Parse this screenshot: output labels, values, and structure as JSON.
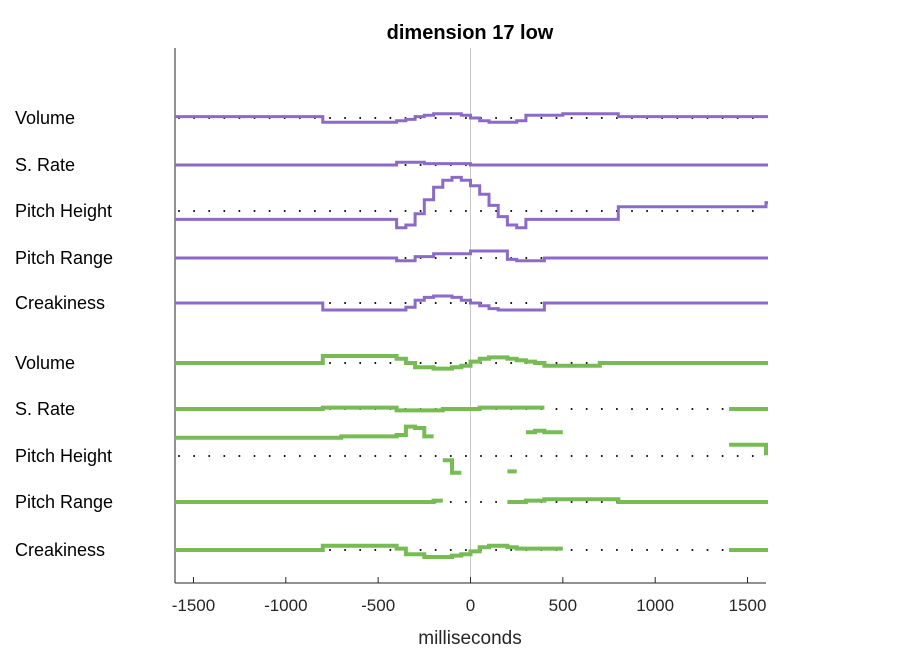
{
  "chart_data": {
    "type": "line",
    "title": "dimension 17 low",
    "xlabel": "milliseconds",
    "ylabel": "",
    "xlim": [
      -1600,
      1600
    ],
    "xticks": [
      -1500,
      -1000,
      -500,
      0,
      500,
      1000,
      1500
    ],
    "xtick_labels": [
      "-1500",
      "-1000",
      "-500",
      "0",
      "500",
      "1000",
      "1500"
    ],
    "zero_line": true,
    "grid": false,
    "legend": "none",
    "x": [
      -1600,
      -1500,
      -1400,
      -1300,
      -1200,
      -1100,
      -1000,
      -900,
      -800,
      -700,
      -600,
      -500,
      -400,
      -350,
      -300,
      -250,
      -200,
      -150,
      -100,
      -50,
      0,
      50,
      100,
      150,
      200,
      250,
      300,
      350,
      400,
      500,
      600,
      700,
      800,
      900,
      1000,
      1100,
      1200,
      1300,
      1400,
      1500,
      1600
    ],
    "colors": {
      "speaker_1": "#8c6bc8",
      "speaker_2": "#77bb55",
      "zero_line": "#c8c8c8",
      "baseline_dots": "#000000"
    },
    "series": [
      {
        "group": "speaker_1",
        "label": "Volume",
        "values": [
          0.1,
          0.1,
          0.1,
          0.1,
          0.1,
          0.1,
          0.1,
          0.1,
          -0.3,
          -0.3,
          -0.3,
          -0.3,
          -0.2,
          -0.1,
          0.1,
          0.2,
          0.3,
          0.3,
          0.3,
          0.2,
          0.0,
          -0.2,
          -0.3,
          -0.3,
          -0.3,
          -0.2,
          0.2,
          0.2,
          0.2,
          0.3,
          0.3,
          0.3,
          0.1,
          0.1,
          0.1,
          0.1,
          0.1,
          0.1,
          0.1,
          0.1,
          0.1
        ]
      },
      {
        "group": "speaker_1",
        "label": "S. Rate",
        "values": [
          0,
          0,
          0,
          0,
          0,
          0,
          0,
          0,
          0,
          0,
          0,
          0,
          0.2,
          0.2,
          0.2,
          0.1,
          0.1,
          0.1,
          0.1,
          0.1,
          0,
          0,
          0,
          0,
          0,
          0,
          0,
          0,
          0,
          0,
          0,
          0,
          0,
          0,
          0,
          0,
          0,
          0,
          0,
          0,
          0
        ]
      },
      {
        "group": "speaker_1",
        "label": "Pitch Height",
        "values": [
          -0.6,
          -0.6,
          -0.6,
          -0.6,
          -0.6,
          -0.6,
          -0.6,
          -0.6,
          -0.6,
          -0.6,
          -0.6,
          -0.6,
          -1.2,
          -1.0,
          -0.2,
          0.8,
          1.7,
          2.2,
          2.4,
          2.2,
          1.8,
          1.2,
          0.4,
          -0.4,
          -1.0,
          -1.2,
          -0.6,
          -0.6,
          -0.6,
          -0.6,
          -0.6,
          -0.6,
          0.3,
          0.3,
          0.3,
          0.3,
          0.3,
          0.3,
          0.3,
          0.3,
          0.6
        ]
      },
      {
        "group": "speaker_1",
        "label": "Pitch Range",
        "values": [
          0,
          0,
          0,
          0,
          0,
          0,
          0,
          0,
          0,
          0,
          0,
          0,
          -0.2,
          -0.2,
          0.1,
          0.1,
          0.3,
          0.3,
          0.3,
          0.3,
          0.5,
          0.5,
          0.5,
          0.5,
          -0.1,
          -0.2,
          -0.2,
          -0.2,
          0,
          0,
          0,
          0,
          0,
          0,
          0,
          0,
          0,
          0,
          0,
          0,
          0
        ]
      },
      {
        "group": "speaker_1",
        "label": "Creakiness",
        "values": [
          0,
          0,
          0,
          0,
          0,
          0,
          0,
          0,
          -0.5,
          -0.5,
          -0.5,
          -0.5,
          -0.5,
          -0.3,
          0.2,
          0.4,
          0.5,
          0.5,
          0.4,
          0.2,
          0.0,
          -0.2,
          -0.4,
          -0.5,
          -0.5,
          -0.5,
          -0.5,
          -0.5,
          0,
          0,
          0,
          0,
          0,
          0,
          0,
          0,
          0,
          0,
          0,
          0,
          0
        ]
      },
      {
        "group": "speaker_2",
        "label": "Volume",
        "values": [
          0,
          0,
          0,
          0,
          0,
          0,
          0,
          0,
          0.5,
          0.5,
          0.5,
          0.5,
          0.3,
          0.0,
          -0.3,
          -0.3,
          -0.4,
          -0.4,
          -0.3,
          -0.2,
          0.1,
          0.3,
          0.4,
          0.4,
          0.3,
          0.2,
          0.1,
          0.0,
          -0.2,
          -0.2,
          -0.2,
          0,
          0,
          0,
          0,
          0,
          0,
          0,
          0,
          0,
          0
        ]
      },
      {
        "group": "speaker_2",
        "label": "S. Rate",
        "values": [
          0,
          0,
          0,
          0,
          0,
          0,
          0,
          0,
          0.1,
          0.1,
          0.1,
          0.1,
          -0.1,
          -0.1,
          -0.1,
          -0.1,
          -0.1,
          0,
          0,
          0,
          0,
          0.1,
          0.1,
          0.1,
          0.1,
          0.1,
          0.1,
          0.1,
          null,
          null,
          null,
          null,
          null,
          null,
          null,
          null,
          null,
          null,
          0,
          0,
          0
        ]
      },
      {
        "group": "speaker_2",
        "label": "Pitch Height",
        "values": [
          1.3,
          1.3,
          1.3,
          1.3,
          1.3,
          1.3,
          1.3,
          1.3,
          1.3,
          1.4,
          1.4,
          1.4,
          1.5,
          2.1,
          2.0,
          1.4,
          null,
          -0.3,
          -1.2,
          null,
          null,
          null,
          null,
          null,
          -1.1,
          null,
          1.7,
          1.8,
          1.7,
          null,
          null,
          null,
          null,
          null,
          null,
          null,
          null,
          null,
          0.8,
          0.8,
          0.2
        ]
      },
      {
        "group": "speaker_2",
        "label": "Pitch Range",
        "values": [
          0,
          0,
          0,
          0,
          0,
          0,
          0,
          0,
          0,
          0,
          0,
          0,
          0,
          0,
          0,
          0,
          0.1,
          null,
          null,
          null,
          null,
          null,
          null,
          null,
          0,
          0,
          0.1,
          0.1,
          0.2,
          0.2,
          0.2,
          0.2,
          0,
          0,
          0,
          0,
          0,
          0,
          0,
          0,
          0
        ]
      },
      {
        "group": "speaker_2",
        "label": "Creakiness",
        "values": [
          0,
          0,
          0,
          0,
          0,
          0,
          0,
          0,
          0.3,
          0.3,
          0.3,
          0.3,
          0.1,
          -0.3,
          -0.3,
          -0.5,
          -0.5,
          -0.5,
          -0.4,
          -0.3,
          -0.1,
          0.2,
          0.3,
          0.3,
          0.2,
          0.1,
          0.1,
          0.1,
          0.1,
          null,
          null,
          null,
          null,
          null,
          null,
          null,
          null,
          null,
          0,
          0,
          0
        ]
      }
    ]
  }
}
